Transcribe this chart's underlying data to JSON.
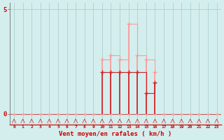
{
  "hours": [
    0,
    1,
    2,
    3,
    4,
    5,
    6,
    7,
    8,
    9,
    10,
    11,
    12,
    13,
    14,
    15,
    16,
    17,
    18,
    19,
    20,
    21,
    22,
    23
  ],
  "wind_avg": [
    0,
    0,
    0,
    0,
    0,
    0,
    0,
    0,
    0,
    0,
    2.0,
    2.0,
    2.0,
    2.0,
    2.0,
    1.0,
    1.5,
    0,
    0,
    0,
    0,
    0,
    0,
    0
  ],
  "wind_gust": [
    0,
    0,
    0,
    0,
    0,
    0,
    0,
    0,
    0,
    0,
    2.6,
    2.8,
    2.6,
    4.3,
    2.8,
    2.6,
    2.0,
    0,
    0,
    0,
    0,
    0,
    0,
    0
  ],
  "avg_color": "#cc2222",
  "gust_color": "#ff9999",
  "bg_color": "#d4eeee",
  "grid_color": "#b0d4d4",
  "axis_left_color": "#888888",
  "axis_bottom_color": "#cc2222",
  "xlabel": "Vent moyen/en rafales ( km/h )",
  "xlabel_color": "#cc0000",
  "tick_color": "#cc0000",
  "ylim_min": -0.5,
  "ylim_max": 5.3,
  "ytick_0_label": "0",
  "ytick_5_label": "5"
}
